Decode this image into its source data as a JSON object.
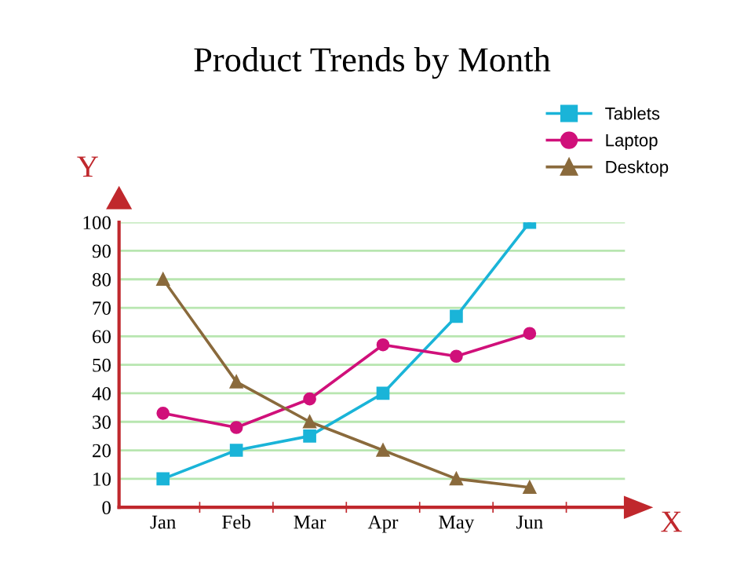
{
  "chart_data": {
    "type": "line",
    "title": "Product Trends by Month",
    "xlabel": "X",
    "ylabel": "Y",
    "categories": [
      "Jan",
      "Feb",
      "Mar",
      "Apr",
      "May",
      "Jun"
    ],
    "series": [
      {
        "name": "Tablets",
        "color": "#1ab4d8",
        "marker": "square",
        "values": [
          10,
          20,
          25,
          40,
          67,
          100
        ]
      },
      {
        "name": "Laptop",
        "color": "#d0107a",
        "marker": "circle",
        "values": [
          33,
          28,
          38,
          57,
          53,
          61
        ]
      },
      {
        "name": "Desktop",
        "color": "#8a6a3c",
        "marker": "triangle",
        "values": [
          80,
          44,
          30,
          20,
          10,
          7
        ]
      }
    ],
    "ylim": [
      0,
      100
    ],
    "yticks": [
      0,
      10,
      20,
      30,
      40,
      50,
      60,
      70,
      80,
      90,
      100
    ],
    "grid": "y",
    "legend": "top right",
    "line_style": "solid"
  }
}
